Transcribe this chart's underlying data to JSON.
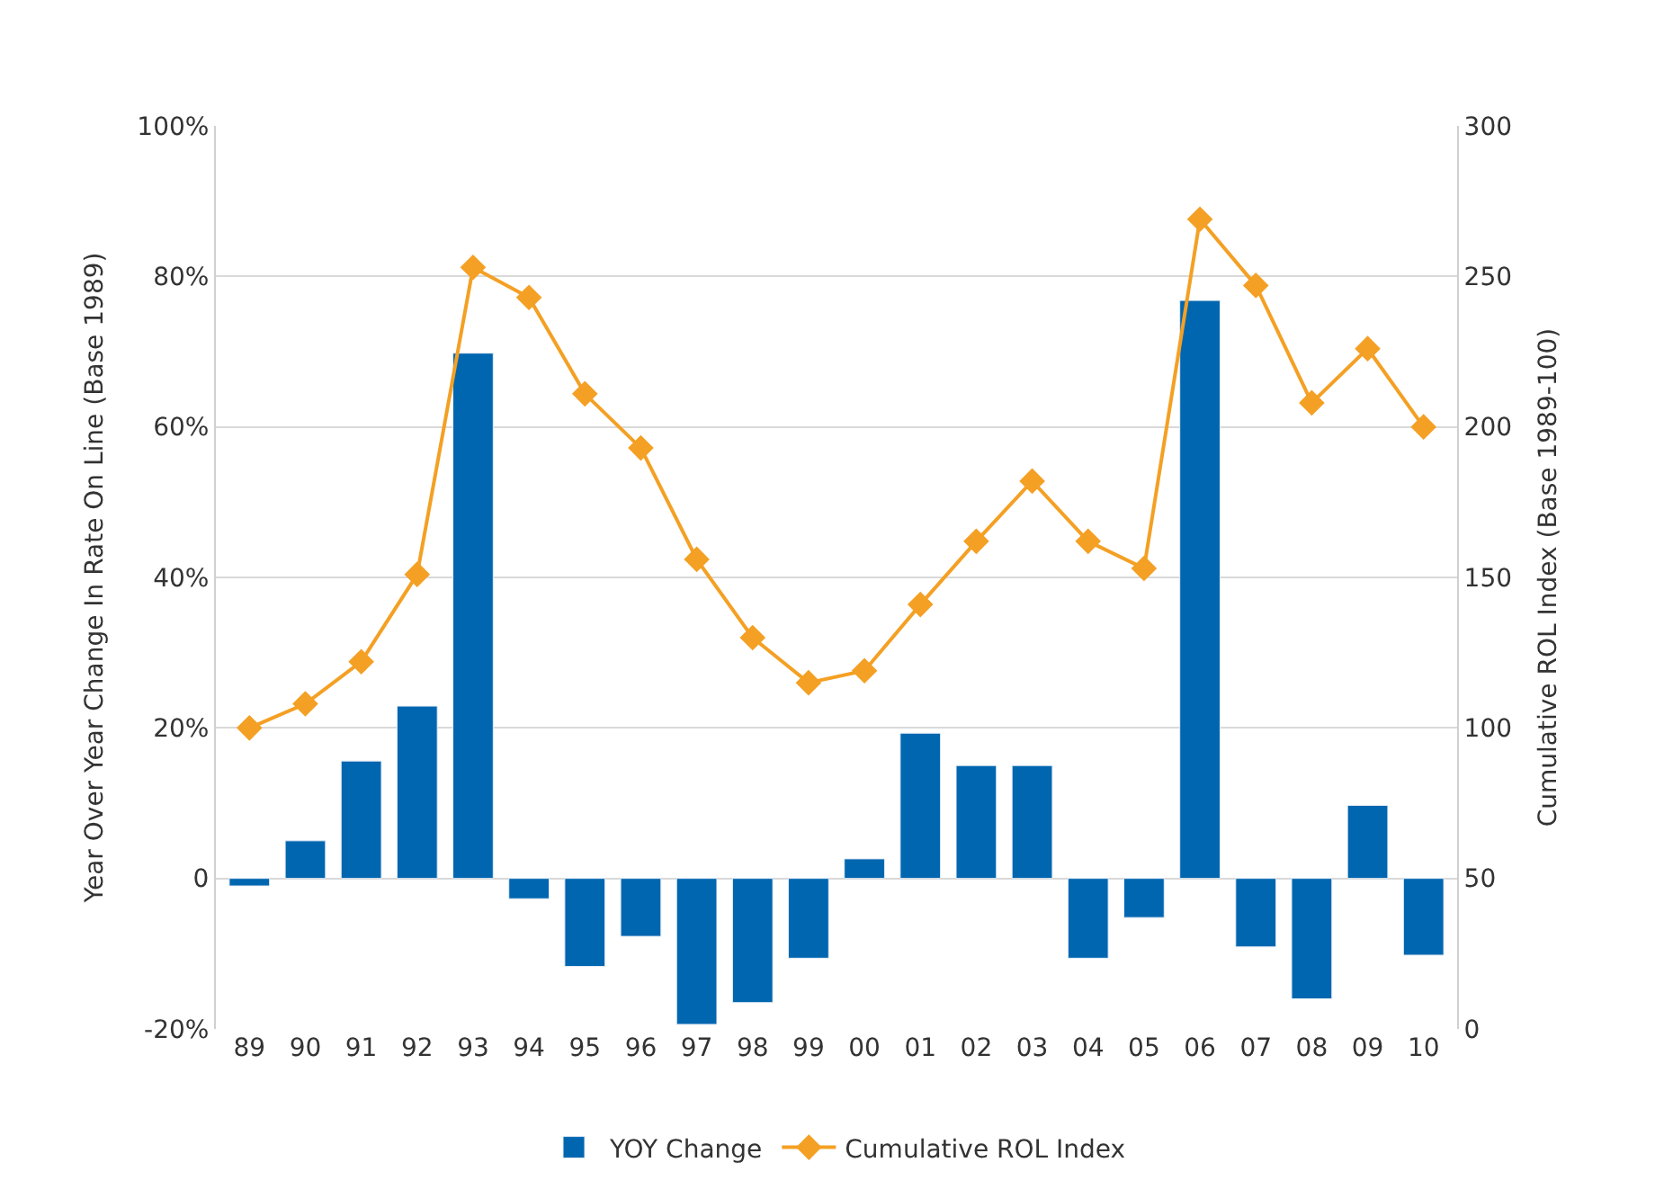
{
  "chart_data": {
    "type": "bar",
    "categories": [
      "89",
      "90",
      "91",
      "92",
      "93",
      "94",
      "95",
      "96",
      "97",
      "98",
      "99",
      "00",
      "01",
      "02",
      "03",
      "04",
      "05",
      "06",
      "07",
      "08",
      "09",
      "10"
    ],
    "series": [
      {
        "name": "YOY Change",
        "color": "#0066b0",
        "values": [
          -1,
          5,
          15.6,
          22.9,
          69.8,
          -2.7,
          -11.7,
          -7.7,
          -19.4,
          -16.5,
          -10.6,
          2.6,
          19.3,
          15,
          15,
          -10.6,
          -5.2,
          76.8,
          -9.1,
          -16,
          9.7,
          -10.2
        ]
      },
      {
        "name": "Cumulative ROL Index",
        "type": "line",
        "axis": "y2",
        "color": "#f4a024",
        "marker": "diamond",
        "values": [
          100,
          108,
          122,
          151,
          253,
          243,
          211,
          193,
          156,
          130,
          115,
          119,
          141,
          162,
          182,
          162,
          153,
          269,
          247,
          208,
          226,
          200
        ]
      }
    ],
    "ylabel": "Year Over Year Change In Rate On Line (Base 1989)",
    "y2label": "Cumulative ROL Index (Base 1989-100)",
    "ylim": [
      -20,
      100
    ],
    "yticks": [
      {
        "value": -20,
        "label": "-20%"
      },
      {
        "value": 0,
        "label": "0"
      },
      {
        "value": 20,
        "label": "20%"
      },
      {
        "value": 40,
        "label": "40%"
      },
      {
        "value": 60,
        "label": "60%"
      },
      {
        "value": 80,
        "label": "80%"
      },
      {
        "value": 100,
        "label": "100%"
      }
    ],
    "y2lim": [
      0,
      300
    ],
    "y2ticks": [
      0,
      50,
      100,
      150,
      200,
      250,
      300
    ],
    "grid": "y",
    "legend": "bottom"
  }
}
